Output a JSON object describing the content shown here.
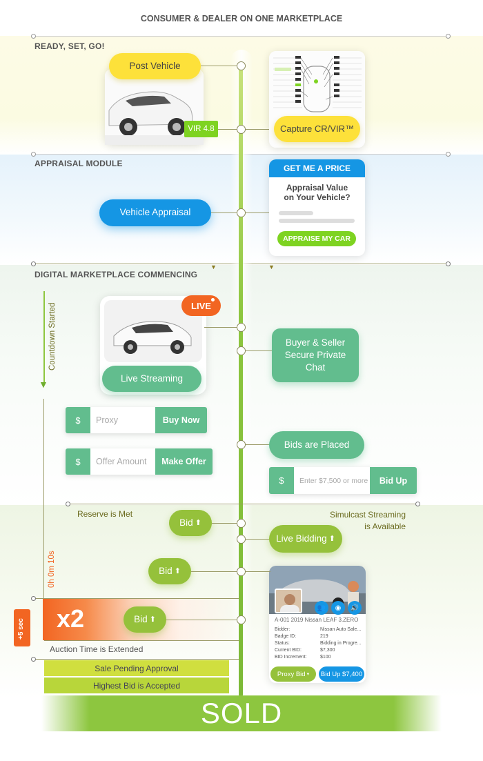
{
  "header": {
    "title": "CONSUMER & DEALER ON ONE MARKETPLACE"
  },
  "sections": {
    "ready": "READY, SET, GO!",
    "appraisal": "APPRAISAL MODULE",
    "marketplace": "DIGITAL MARKETPLACE COMMENCING"
  },
  "ready": {
    "post_vehicle": "Post Vehicle",
    "vir_badge": "VIR 4.8",
    "capture": "Capture CR/VIR™"
  },
  "appraisal": {
    "vehicle_appraisal": "Vehicle Appraisal",
    "card_header": "GET ME A PRICE",
    "card_question": "Appraisal Value on Your Vehicle?",
    "card_button": "APPRAISE MY CAR"
  },
  "marketplace": {
    "countdown": "Countdown Started",
    "live_badge": "LIVE",
    "live_streaming": "Live Streaming",
    "private_chat": "Buyer & Seller Secure Private Chat",
    "proxy": {
      "currency": "$",
      "placeholder": "Proxy",
      "action": "Buy Now"
    },
    "offer": {
      "currency": "$",
      "placeholder": "Offer Amount",
      "action": "Make Offer"
    },
    "bids_placed": "Bids are Placed",
    "bid_up_field": {
      "currency": "$",
      "placeholder": "Enter $7,500 or more",
      "action": "Bid Up"
    }
  },
  "bidding": {
    "reserve_met": "Reserve is Met",
    "simulcast": "Simulcast Streaming is Available",
    "bid1": "Bid",
    "bid2": "Bid",
    "bid3": "Bid",
    "live_bidding": "Live Bidding",
    "timer": "0h 0m 10s",
    "plus_sec": "+5 sec",
    "multiplier": "x2",
    "extended": "Auction Time is Extended",
    "sale_pending": "Sale Pending Approval",
    "highest_accepted": "Highest Bid is Accepted",
    "sold": "SOLD"
  },
  "auction_card": {
    "title": "A-001 2019 Nissan LEAF 3.ZERO",
    "rows": [
      {
        "k": "Bidder:",
        "v": "Nissan Auto Sale..."
      },
      {
        "k": "Badge ID:",
        "v": "219"
      },
      {
        "k": "Status:",
        "v": "Bidding in Progre..."
      },
      {
        "k": "Current BID:",
        "v": "$7,300"
      },
      {
        "k": "BID Increment:",
        "v": "$100"
      }
    ],
    "proxy_button": "Proxy Bid",
    "bid_up_button": "Bid Up $7,400"
  },
  "colors": {
    "yellow": "#fde13a",
    "blue": "#1596e4",
    "teal": "#62bd8e",
    "olive": "#95c13b",
    "orange": "#f26522",
    "spine": "#8dc63f"
  }
}
